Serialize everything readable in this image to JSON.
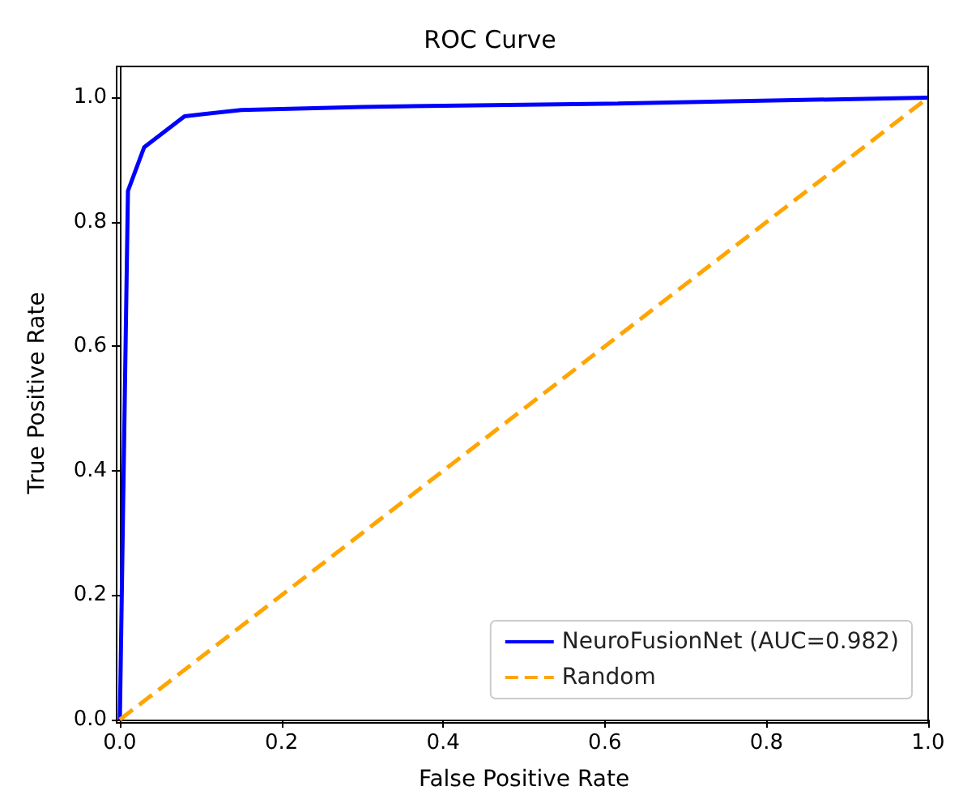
{
  "chart_data": {
    "type": "line",
    "title": "ROC Curve",
    "xlabel": "False Positive Rate",
    "ylabel": "True Positive Rate",
    "series": [
      {
        "name": "NeuroFusionNet (AUC=0.982)",
        "color": "#0000ff",
        "line_style": "solid",
        "x": [
          0,
          0.01,
          0.03,
          0.08,
          0.15,
          0.3,
          0.6,
          1
        ],
        "values": [
          0,
          0.85,
          0.92,
          0.97,
          0.98,
          0.985,
          0.99,
          1
        ]
      },
      {
        "name": "Random",
        "color": "#ffa500",
        "line_style": "dashed",
        "x": [
          0,
          1
        ],
        "values": [
          0,
          1
        ]
      }
    ],
    "xlim": [
      0,
      1
    ],
    "ylim": [
      0,
      1.05
    ],
    "xticks": [
      {
        "value": 0,
        "label": "0.0"
      },
      0.2,
      0.4,
      0.6,
      0.8,
      {
        "value": 1,
        "label": "1.0"
      }
    ],
    "yticks": [
      {
        "value": 0,
        "label": "0.0"
      },
      0.2,
      0.4,
      0.6,
      0.8,
      {
        "value": 1,
        "label": "1.0"
      }
    ],
    "legend": "bottom right",
    "grid": false,
    "marker": "none"
  }
}
